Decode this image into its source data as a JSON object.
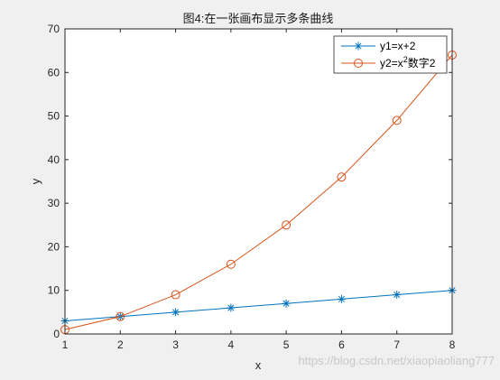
{
  "chart_data": {
    "type": "line",
    "title": "图4:在一张画布显示多条曲线",
    "xlabel": "x",
    "ylabel": "y",
    "xlim": [
      1,
      8
    ],
    "ylim": [
      0,
      70
    ],
    "x_ticks": [
      "1",
      "2",
      "3",
      "4",
      "5",
      "6",
      "7",
      "8"
    ],
    "y_ticks": [
      "0",
      "10",
      "20",
      "30",
      "40",
      "50",
      "60",
      "70"
    ],
    "grid": false,
    "legend_position": "top-right",
    "x": [
      1,
      2,
      3,
      4,
      5,
      6,
      7,
      8
    ],
    "series": [
      {
        "name": "y1=x+2",
        "marker": "asterisk",
        "color": "#0072bd",
        "values": [
          3,
          4,
          5,
          6,
          7,
          8,
          9,
          10
        ]
      },
      {
        "name": "y2=x",
        "name_superscript": "2",
        "name_suffix": "数字2",
        "marker": "circle",
        "color": "#d95319",
        "values": [
          1,
          4,
          9,
          16,
          25,
          36,
          49,
          64
        ]
      }
    ]
  },
  "watermark": "https://blog.csdn.net/xiaopiaoliang777"
}
